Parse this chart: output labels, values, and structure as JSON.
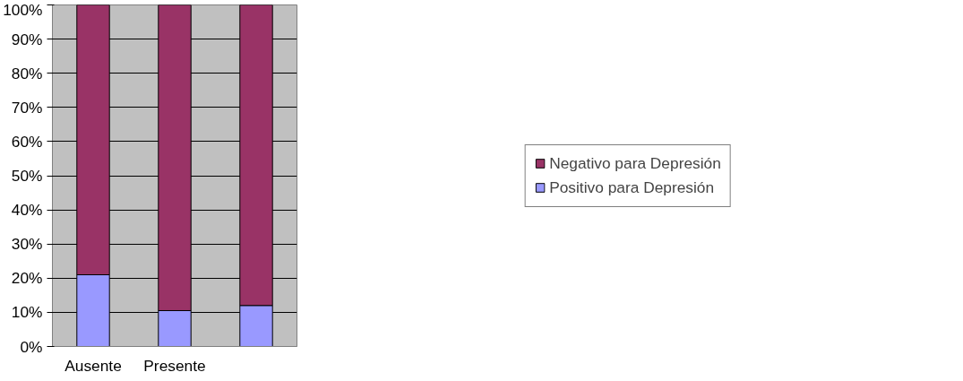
{
  "chart_data": {
    "type": "bar",
    "stacked": true,
    "categories": [
      "Ausente",
      "Presente",
      null
    ],
    "series": [
      {
        "name": "Positivo para Depresión",
        "color": "#9999ff",
        "values": [
          21,
          10.5,
          12
        ]
      },
      {
        "name": "Negativo para Depresión",
        "color": "#993366",
        "values": [
          79,
          89.5,
          88
        ]
      }
    ],
    "ylim": [
      0,
      100
    ],
    "yticks": [
      {
        "value": 0,
        "label": "0%"
      },
      {
        "value": 10,
        "label": "10%"
      },
      {
        "value": 20,
        "label": "20%"
      },
      {
        "value": 30,
        "label": "30%"
      },
      {
        "value": 40,
        "label": "40%"
      },
      {
        "value": 50,
        "label": "50%"
      },
      {
        "value": 60,
        "label": "60%"
      },
      {
        "value": 70,
        "label": "70%"
      },
      {
        "value": 80,
        "label": "80%"
      },
      {
        "value": 90,
        "label": "90%"
      },
      {
        "value": 100,
        "label": "100%"
      }
    ],
    "grid": "y",
    "legend": "right"
  }
}
